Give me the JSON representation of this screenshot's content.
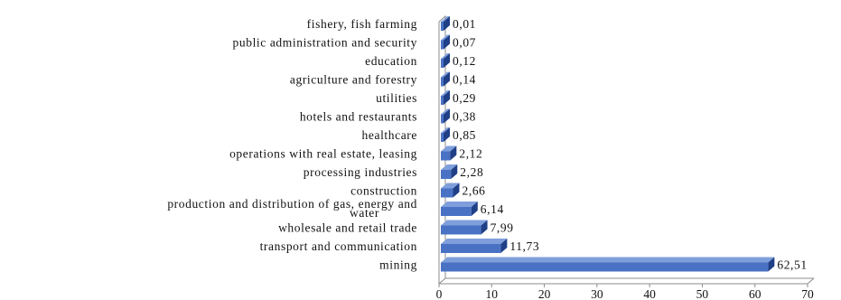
{
  "chart_data": {
    "type": "bar",
    "orientation": "horizontal",
    "style": "3d",
    "categories": [
      "fishery, fish farming",
      "public administration and security",
      "education",
      "agriculture and forestry",
      "utilities",
      "hotels and restaurants",
      "healthcare",
      "operations with real estate, leasing",
      "processing industries",
      "construction",
      "production and distribution of gas, energy and water",
      "wholesale and retail trade",
      "transport and communication",
      "mining"
    ],
    "values": [
      0.01,
      0.07,
      0.12,
      0.14,
      0.29,
      0.38,
      0.85,
      2.12,
      2.28,
      2.66,
      6.14,
      7.99,
      11.73,
      62.51
    ],
    "value_labels": [
      "0,01",
      "0,07",
      "0,12",
      "0,14",
      "0,29",
      "0,38",
      "0,85",
      "2,12",
      "2,28",
      "2,66",
      "6,14",
      "7,99",
      "11,73",
      "62,51"
    ],
    "title": "",
    "xlabel": "",
    "ylabel": "",
    "xlim": [
      0,
      70
    ],
    "xticks": [
      0,
      10,
      20,
      30,
      40,
      50,
      60,
      70
    ],
    "xtick_labels": [
      "0",
      "10",
      "20",
      "30",
      "40",
      "50",
      "60",
      "70"
    ],
    "grid": false,
    "legend": "none",
    "colors": {
      "bar_front": "#4a72c4",
      "bar_top": "#7f9fdc",
      "bar_side": "#1f3f86",
      "wall": "#ffffff",
      "wall_edge": "#8c8c8c",
      "text": "#111111"
    }
  }
}
